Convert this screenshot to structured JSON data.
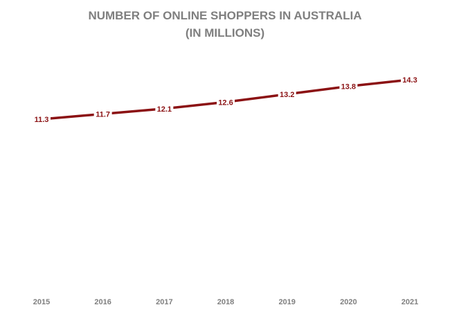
{
  "chart_data": {
    "type": "line",
    "title": "NUMBER OF ONLINE SHOPPERS IN AUSTRALIA",
    "subtitle": "(IN MILLIONS)",
    "categories": [
      "2015",
      "2016",
      "2017",
      "2018",
      "2019",
      "2020",
      "2021"
    ],
    "series": [
      {
        "values": [
          11.3,
          11.7,
          12.1,
          12.6,
          13.2,
          13.8,
          14.3
        ],
        "color": "#8b1113"
      }
    ],
    "data_labels": [
      "11.3",
      "11.7",
      "12.1",
      "12.6",
      "13.2",
      "13.8",
      "14.3"
    ],
    "xlabel": "",
    "ylabel": "",
    "grid": false,
    "legend": "none",
    "drop_lines": true
  }
}
